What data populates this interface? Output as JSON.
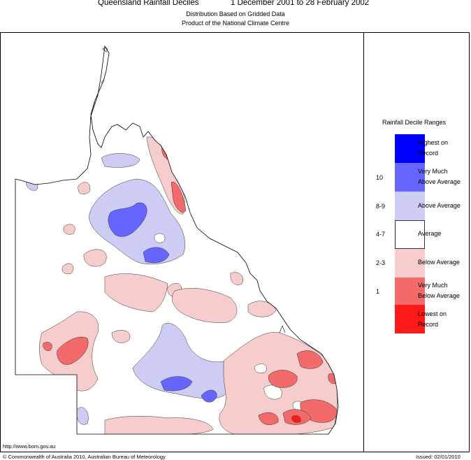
{
  "header": {
    "title": "Queensland Rainfall Deciles",
    "period": "1 December 2001 to 28 February 2002",
    "subtitle_1": "Distribution Based on Gridded Data",
    "subtitle_2": "Product of the National Climate Centre"
  },
  "legend": {
    "title": "Rainfall Decile Ranges",
    "items": [
      {
        "label_1": "Highest on",
        "label_2": "Record",
        "range": "",
        "color": "#0000ff"
      },
      {
        "label_1": "Very Much",
        "label_2": "Above Average",
        "range": "10",
        "color": "#6666ff"
      },
      {
        "label_1": "Above Average",
        "label_2": "",
        "range": "8-9",
        "color": "#ccccf5"
      },
      {
        "label_1": "Average",
        "label_2": "",
        "range": "4-7",
        "color": "#ffffff"
      },
      {
        "label_1": "Below Average",
        "label_2": "",
        "range": "2-3",
        "color": "#f7cccc"
      },
      {
        "label_1": "Very Much",
        "label_2": "Below Average",
        "range": "1",
        "color": "#f26a6a"
      },
      {
        "label_1": "Lowest on",
        "label_2": "Record",
        "range": "",
        "color": "#ff1a1a"
      }
    ]
  },
  "footer": {
    "url": "http://www.bom.gov.au",
    "copyright": "© Commonwealth of Australia 2010, Australian Bureau of Meteorology",
    "issued": "Issued: 02/01/2010"
  }
}
